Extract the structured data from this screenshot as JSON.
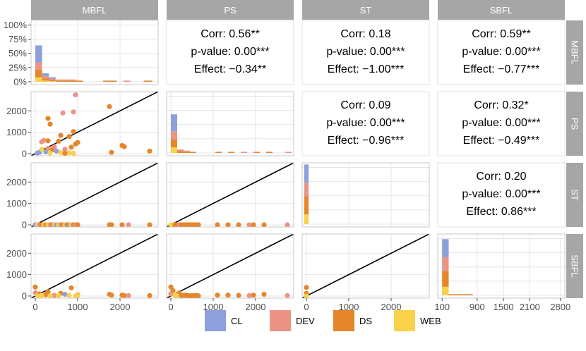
{
  "chart_data": {
    "type": "scatter-matrix",
    "variables": [
      "MBFL",
      "PS",
      "ST",
      "SBFL"
    ],
    "colors": {
      "CL": "#8da0db",
      "DEV": "#eb9486",
      "DS": "#e5862b",
      "WEB": "#f9d14a"
    },
    "scatter_axis": {
      "lim": [
        -100,
        2900
      ],
      "ticks": [
        0,
        1000,
        2000
      ]
    },
    "hist_axis": {
      "ticks": [
        0,
        0.25,
        0.5,
        0.75,
        1.0
      ],
      "tick_labels": [
        "0%",
        "25%",
        "50%",
        "75%",
        "100%"
      ]
    },
    "sbfl_x_ticks": {
      "values": [
        100,
        900,
        1500,
        2100,
        2800
      ],
      "labels": [
        "100",
        "900",
        "1500",
        "2100",
        "2800"
      ],
      "lim": [
        0,
        2900
      ]
    },
    "stats": [
      {
        "row": 0,
        "col": 1,
        "corr": "Corr: 0.56**",
        "pvalue": "p-value: 0.00***",
        "effect": "Effect: −0.34**"
      },
      {
        "row": 0,
        "col": 2,
        "corr": "Corr: 0.18",
        "pvalue": "p-value: 0.00***",
        "effect": "Effect: −1.00***"
      },
      {
        "row": 0,
        "col": 3,
        "corr": "Corr: 0.59**",
        "pvalue": "p-value: 0.00***",
        "effect": "Effect: −0.77***"
      },
      {
        "row": 1,
        "col": 2,
        "corr": "Corr: 0.09",
        "pvalue": "p-value: 0.00***",
        "effect": "Effect: −0.96***"
      },
      {
        "row": 1,
        "col": 3,
        "corr": "Corr: 0.32*",
        "pvalue": "p-value: 0.00***",
        "effect": "Effect: −0.49***"
      },
      {
        "row": 2,
        "col": 3,
        "corr": "Corr: 0.20",
        "pvalue": "p-value: 0.00***",
        "effect": "Effect: 0.86***"
      }
    ],
    "histograms": {
      "MBFL": [
        {
          "x": 0,
          "w": 160,
          "stack": [
            {
              "g": "CL",
              "v": 0.3
            },
            {
              "g": "DEV",
              "v": 0.12
            },
            {
              "g": "DS",
              "v": 0.14
            },
            {
              "g": "WEB",
              "v": 0.08
            }
          ]
        },
        {
          "x": 160,
          "w": 160,
          "stack": [
            {
              "g": "CL",
              "v": 0.05
            },
            {
              "g": "DEV",
              "v": 0.04
            },
            {
              "g": "DS",
              "v": 0.04
            },
            {
              "g": "WEB",
              "v": 0.02
            }
          ]
        },
        {
          "x": 320,
          "w": 160,
          "stack": [
            {
              "g": "CL",
              "v": 0.03
            },
            {
              "g": "DEV",
              "v": 0.02
            },
            {
              "g": "DS",
              "v": 0.02
            },
            {
              "g": "WEB",
              "v": 0.01
            }
          ]
        },
        {
          "x": 480,
          "w": 160,
          "stack": [
            {
              "g": "DEV",
              "v": 0.02
            },
            {
              "g": "DS",
              "v": 0.02
            }
          ]
        },
        {
          "x": 640,
          "w": 160,
          "stack": [
            {
              "g": "DEV",
              "v": 0.02
            },
            {
              "g": "DS",
              "v": 0.02
            }
          ]
        },
        {
          "x": 800,
          "w": 160,
          "stack": [
            {
              "g": "DEV",
              "v": 0.02
            },
            {
              "g": "DS",
              "v": 0.02
            }
          ]
        },
        {
          "x": 960,
          "w": 160,
          "stack": [
            {
              "g": "DS",
              "v": 0.02
            }
          ]
        },
        {
          "x": 1600,
          "w": 160,
          "stack": [
            {
              "g": "DS",
              "v": 0.02
            }
          ]
        },
        {
          "x": 1760,
          "w": 160,
          "stack": [
            {
              "g": "DS",
              "v": 0.02
            }
          ]
        },
        {
          "x": 2080,
          "w": 160,
          "stack": [
            {
              "g": "DEV",
              "v": 0.02
            }
          ]
        },
        {
          "x": 2560,
          "w": 200,
          "stack": [
            {
              "g": "DS",
              "v": 0.02
            }
          ]
        }
      ],
      "PS": [
        {
          "x": 0,
          "w": 150,
          "stack": [
            {
              "g": "CL",
              "v": 0.3
            },
            {
              "g": "DEV",
              "v": 0.14
            },
            {
              "g": "DS",
              "v": 0.14
            },
            {
              "g": "WEB",
              "v": 0.1
            }
          ]
        },
        {
          "x": 150,
          "w": 150,
          "stack": [
            {
              "g": "DEV",
              "v": 0.03
            },
            {
              "g": "DS",
              "v": 0.03
            }
          ]
        },
        {
          "x": 300,
          "w": 150,
          "stack": [
            {
              "g": "DEV",
              "v": 0.02
            },
            {
              "g": "DS",
              "v": 0.02
            }
          ]
        },
        {
          "x": 450,
          "w": 150,
          "stack": [
            {
              "g": "DS",
              "v": 0.02
            }
          ]
        },
        {
          "x": 1050,
          "w": 150,
          "stack": [
            {
              "g": "DS",
              "v": 0.02
            }
          ]
        },
        {
          "x": 1350,
          "w": 150,
          "stack": [
            {
              "g": "DS",
              "v": 0.02
            }
          ]
        },
        {
          "x": 1650,
          "w": 150,
          "stack": [
            {
              "g": "DEV",
              "v": 0.02
            }
          ]
        },
        {
          "x": 1950,
          "w": 150,
          "stack": [
            {
              "g": "DS",
              "v": 0.02
            }
          ]
        },
        {
          "x": 2250,
          "w": 150,
          "stack": [
            {
              "g": "DS",
              "v": 0.02
            }
          ]
        },
        {
          "x": 2700,
          "w": 150,
          "stack": [
            {
              "g": "DEV",
              "v": 0.02
            }
          ]
        }
      ],
      "ST": [
        {
          "x": -50,
          "w": 100,
          "stack": [
            {
              "g": "CL",
              "v": 0.32
            },
            {
              "g": "DEV",
              "v": 0.24
            },
            {
              "g": "DS",
              "v": 0.32
            },
            {
              "g": "WEB",
              "v": 0.17
            }
          ]
        }
      ],
      "SBFL": [
        {
          "x": 100,
          "w": 150,
          "stack": [
            {
              "g": "CL",
              "v": 0.32
            },
            {
              "g": "DEV",
              "v": 0.24
            },
            {
              "g": "DS",
              "v": 0.28
            },
            {
              "g": "WEB",
              "v": 0.15
            }
          ]
        },
        {
          "x": 250,
          "w": 550,
          "stack": [
            {
              "g": "DS",
              "v": 0.02
            }
          ]
        }
      ]
    },
    "scatter": {
      "MBFL_PS": [
        {
          "x": 950,
          "y": 2750,
          "g": "DEV"
        },
        {
          "x": 300,
          "y": 1650,
          "g": "DS"
        },
        {
          "x": 650,
          "y": 1900,
          "g": "DEV"
        },
        {
          "x": 900,
          "y": 1950,
          "g": "DEV"
        },
        {
          "x": 350,
          "y": 1380,
          "g": "DS"
        },
        {
          "x": 1750,
          "y": 2200,
          "g": "DS"
        },
        {
          "x": 900,
          "y": 1030,
          "g": "DS"
        },
        {
          "x": 600,
          "y": 850,
          "g": "DS"
        },
        {
          "x": 800,
          "y": 800,
          "g": "DS"
        },
        {
          "x": 200,
          "y": 620,
          "g": "DEV"
        },
        {
          "x": 300,
          "y": 600,
          "g": "DS"
        },
        {
          "x": 150,
          "y": 550,
          "g": "DEV"
        },
        {
          "x": 550,
          "y": 580,
          "g": "DS"
        },
        {
          "x": 950,
          "y": 450,
          "g": "DS"
        },
        {
          "x": 1000,
          "y": 520,
          "g": "DS"
        },
        {
          "x": 850,
          "y": 300,
          "g": "DS"
        },
        {
          "x": 2050,
          "y": 380,
          "g": "DS"
        },
        {
          "x": 2100,
          "y": 330,
          "g": "DS"
        },
        {
          "x": 1800,
          "y": 60,
          "g": "DS"
        },
        {
          "x": 2700,
          "y": 120,
          "g": "DS"
        },
        {
          "x": 450,
          "y": 320,
          "g": "DEV"
        },
        {
          "x": 400,
          "y": 180,
          "g": "DS"
        },
        {
          "x": 500,
          "y": 120,
          "g": "CL"
        },
        {
          "x": 700,
          "y": 200,
          "g": "DEV"
        },
        {
          "x": 250,
          "y": 80,
          "g": "CL"
        },
        {
          "x": 100,
          "y": 60,
          "g": "CL"
        },
        {
          "x": 350,
          "y": 30,
          "g": "WEB"
        },
        {
          "x": 600,
          "y": 50,
          "g": "WEB"
        },
        {
          "x": 800,
          "y": 40,
          "g": "WEB"
        },
        {
          "x": 900,
          "y": 20,
          "g": "WEB"
        },
        {
          "x": 150,
          "y": 200,
          "g": "WEB"
        },
        {
          "x": 50,
          "y": 30,
          "g": "CL"
        },
        {
          "x": 700,
          "y": 10,
          "g": "DS"
        },
        {
          "x": 300,
          "y": 250,
          "g": "DEV"
        }
      ],
      "MBFL_ST": [
        {
          "x": 0,
          "y": 0,
          "g": "CL"
        },
        {
          "x": 50,
          "y": 0,
          "g": "WEB"
        },
        {
          "x": 100,
          "y": 0,
          "g": "DEV"
        },
        {
          "x": 150,
          "y": 0,
          "g": "DS"
        },
        {
          "x": 200,
          "y": 0,
          "g": "WEB"
        },
        {
          "x": 250,
          "y": 0,
          "g": "DS"
        },
        {
          "x": 300,
          "y": 0,
          "g": "WEB"
        },
        {
          "x": 350,
          "y": 0,
          "g": "DEV"
        },
        {
          "x": 400,
          "y": 0,
          "g": "DS"
        },
        {
          "x": 450,
          "y": 0,
          "g": "WEB"
        },
        {
          "x": 500,
          "y": 0,
          "g": "CL"
        },
        {
          "x": 550,
          "y": 0,
          "g": "WEB"
        },
        {
          "x": 600,
          "y": 0,
          "g": "DEV"
        },
        {
          "x": 650,
          "y": 0,
          "g": "DS"
        },
        {
          "x": 700,
          "y": 0,
          "g": "WEB"
        },
        {
          "x": 750,
          "y": 0,
          "g": "DS"
        },
        {
          "x": 800,
          "y": 0,
          "g": "CL"
        },
        {
          "x": 850,
          "y": 0,
          "g": "WEB"
        },
        {
          "x": 900,
          "y": 0,
          "g": "DS"
        },
        {
          "x": 950,
          "y": 0,
          "g": "DEV"
        },
        {
          "x": 1000,
          "y": 0,
          "g": "DS"
        },
        {
          "x": 1750,
          "y": 0,
          "g": "DS"
        },
        {
          "x": 1800,
          "y": 0,
          "g": "DS"
        },
        {
          "x": 2050,
          "y": 0,
          "g": "DS"
        },
        {
          "x": 2200,
          "y": 0,
          "g": "DEV"
        },
        {
          "x": 2700,
          "y": 0,
          "g": "DS"
        }
      ],
      "PS_ST": [
        {
          "x": 0,
          "y": 0,
          "g": "WEB"
        },
        {
          "x": 50,
          "y": 0,
          "g": "WEB"
        },
        {
          "x": 100,
          "y": 0,
          "g": "DS"
        },
        {
          "x": 150,
          "y": 0,
          "g": "DS"
        },
        {
          "x": 200,
          "y": 0,
          "g": "DEV"
        },
        {
          "x": 250,
          "y": 0,
          "g": "DS"
        },
        {
          "x": 300,
          "y": 0,
          "g": "DS"
        },
        {
          "x": 350,
          "y": 0,
          "g": "DS"
        },
        {
          "x": 400,
          "y": 0,
          "g": "DS"
        },
        {
          "x": 450,
          "y": 0,
          "g": "DS"
        },
        {
          "x": 500,
          "y": 0,
          "g": "DS"
        },
        {
          "x": 550,
          "y": 0,
          "g": "DS"
        },
        {
          "x": 600,
          "y": 0,
          "g": "DS"
        },
        {
          "x": 650,
          "y": 0,
          "g": "DS"
        },
        {
          "x": 1100,
          "y": 0,
          "g": "DS"
        },
        {
          "x": 1350,
          "y": 0,
          "g": "DS"
        },
        {
          "x": 1600,
          "y": 0,
          "g": "DS"
        },
        {
          "x": 1850,
          "y": 0,
          "g": "DEV"
        },
        {
          "x": 1950,
          "y": 0,
          "g": "DS"
        },
        {
          "x": 2200,
          "y": 0,
          "g": "DS"
        },
        {
          "x": 2750,
          "y": 0,
          "g": "DEV"
        }
      ],
      "MBFL_SBFL": [
        {
          "x": 0,
          "y": 420,
          "g": "DS"
        },
        {
          "x": 850,
          "y": 380,
          "g": "DS"
        },
        {
          "x": 1000,
          "y": 50,
          "g": "DS"
        },
        {
          "x": 600,
          "y": 120,
          "g": "DS"
        },
        {
          "x": 250,
          "y": 60,
          "g": "DS"
        },
        {
          "x": 100,
          "y": 100,
          "g": "DS"
        },
        {
          "x": 0,
          "y": 150,
          "g": "DEV"
        },
        {
          "x": 300,
          "y": 200,
          "g": "DS"
        },
        {
          "x": 450,
          "y": 30,
          "g": "DEV"
        },
        {
          "x": 700,
          "y": 80,
          "g": "CL"
        },
        {
          "x": 50,
          "y": 10,
          "g": "WEB"
        },
        {
          "x": 150,
          "y": 20,
          "g": "WEB"
        },
        {
          "x": 350,
          "y": 10,
          "g": "WEB"
        },
        {
          "x": 550,
          "y": 20,
          "g": "WEB"
        },
        {
          "x": 800,
          "y": 30,
          "g": "WEB"
        },
        {
          "x": 950,
          "y": 10,
          "g": "WEB"
        },
        {
          "x": 1000,
          "y": 20,
          "g": "WEB"
        },
        {
          "x": 1750,
          "y": 80,
          "g": "DS"
        },
        {
          "x": 1800,
          "y": 40,
          "g": "DS"
        },
        {
          "x": 2050,
          "y": 40,
          "g": "DS"
        },
        {
          "x": 2100,
          "y": 20,
          "g": "DS"
        },
        {
          "x": 2200,
          "y": 20,
          "g": "DEV"
        },
        {
          "x": 2700,
          "y": 20,
          "g": "DS"
        }
      ],
      "PS_SBFL": [
        {
          "x": 0,
          "y": 420,
          "g": "DS"
        },
        {
          "x": 50,
          "y": 250,
          "g": "DS"
        },
        {
          "x": 200,
          "y": 150,
          "g": "DS"
        },
        {
          "x": 0,
          "y": 100,
          "g": "DEV"
        },
        {
          "x": 100,
          "y": 40,
          "g": "WEB"
        },
        {
          "x": 150,
          "y": 10,
          "g": "WEB"
        },
        {
          "x": 250,
          "y": 20,
          "g": "DS"
        },
        {
          "x": 300,
          "y": 30,
          "g": "DS"
        },
        {
          "x": 350,
          "y": 40,
          "g": "DS"
        },
        {
          "x": 400,
          "y": 20,
          "g": "DS"
        },
        {
          "x": 450,
          "y": 10,
          "g": "DS"
        },
        {
          "x": 500,
          "y": 20,
          "g": "DS"
        },
        {
          "x": 550,
          "y": 10,
          "g": "DS"
        },
        {
          "x": 600,
          "y": 30,
          "g": "DS"
        },
        {
          "x": 650,
          "y": 10,
          "g": "DS"
        },
        {
          "x": 1100,
          "y": 40,
          "g": "DS"
        },
        {
          "x": 1350,
          "y": 40,
          "g": "DS"
        },
        {
          "x": 1600,
          "y": 30,
          "g": "DS"
        },
        {
          "x": 1850,
          "y": 20,
          "g": "DEV"
        },
        {
          "x": 1950,
          "y": 40,
          "g": "DS"
        },
        {
          "x": 2200,
          "y": 80,
          "g": "DS"
        },
        {
          "x": 2750,
          "y": 20,
          "g": "DEV"
        }
      ],
      "ST_SBFL": [
        {
          "x": 0,
          "y": 400,
          "g": "DS"
        },
        {
          "x": 0,
          "y": 120,
          "g": "DS"
        },
        {
          "x": 0,
          "y": 0,
          "g": "WEB"
        }
      ]
    },
    "legend": [
      "CL",
      "DEV",
      "DS",
      "WEB"
    ],
    "legend_position": "bottom"
  }
}
